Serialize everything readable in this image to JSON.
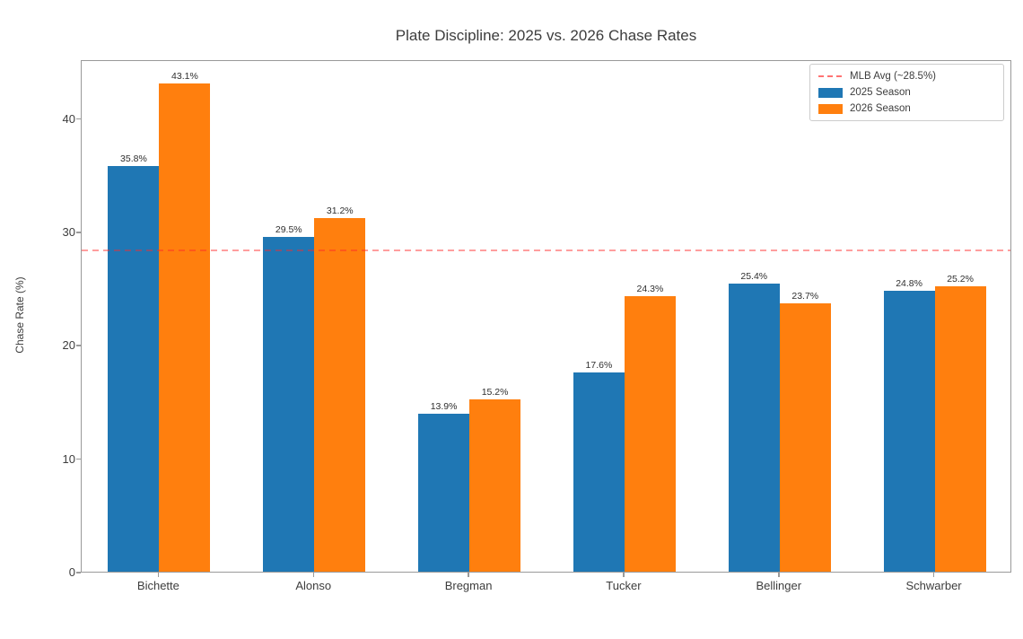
{
  "chart_data": {
    "type": "bar",
    "title": "Plate Discipline: 2025 vs. 2026 Chase Rates",
    "ylabel": "Chase Rate (%)",
    "xlabel": "",
    "categories": [
      "Bichette",
      "Alonso",
      "Bregman",
      "Tucker",
      "Bellinger",
      "Schwarber"
    ],
    "series": [
      {
        "name": "2025 Season",
        "color": "#1f77b4",
        "values": [
          35.8,
          29.5,
          13.9,
          17.6,
          25.4,
          24.8
        ]
      },
      {
        "name": "2026 Season",
        "color": "#ff7f0e",
        "values": [
          43.1,
          31.2,
          15.2,
          24.3,
          23.7,
          25.2
        ]
      }
    ],
    "value_labels": [
      [
        "35.8%",
        "29.5%",
        "13.9%",
        "17.6%",
        "25.4%",
        "24.8%"
      ],
      [
        "43.1%",
        "31.2%",
        "15.2%",
        "24.3%",
        "23.7%",
        "25.2%"
      ]
    ],
    "reference_line": {
      "label": "MLB Avg (~28.5%)",
      "value": 28.5,
      "color": "#ff0000",
      "style": "dashed"
    },
    "yticks": [
      0,
      10,
      20,
      30,
      40
    ],
    "ylim": [
      0,
      45.2
    ],
    "grid": false,
    "legend_position": "top-right",
    "legend_order": [
      "reference_line",
      "2025 Season",
      "2026 Season"
    ]
  }
}
